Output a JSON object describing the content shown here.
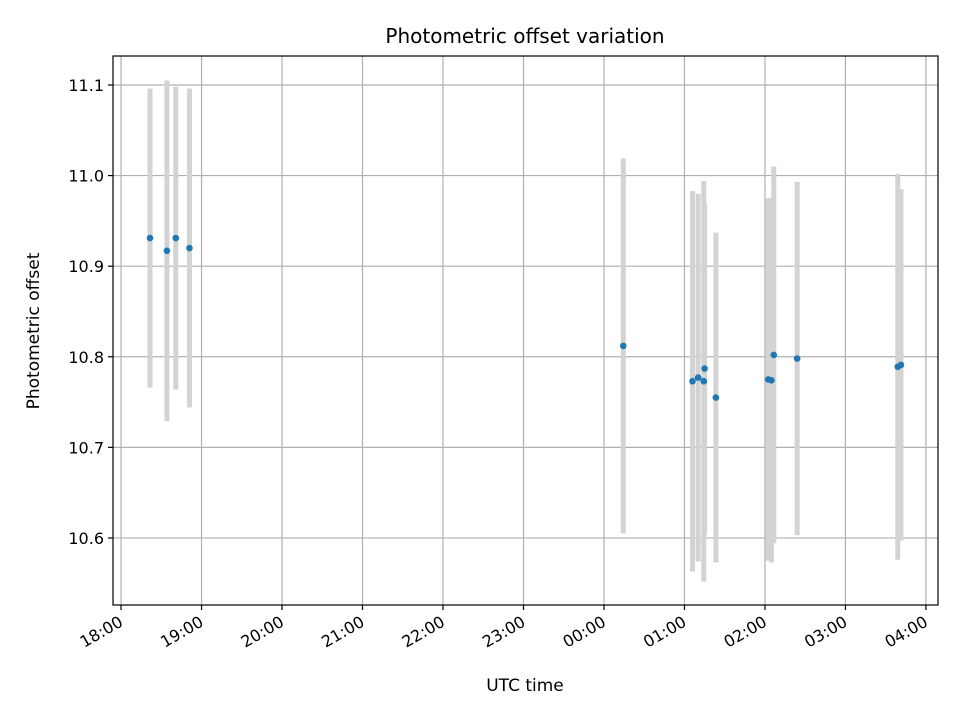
{
  "chart_data": {
    "type": "scatter",
    "title": "Photometric offset variation",
    "xlabel": "UTC time",
    "ylabel": "Photometric offset",
    "x_unit": "UTC time of day (hours, times after midnight continue past 24 into the next day)",
    "xlim": [
      17.9,
      28.15
    ],
    "ylim": [
      10.526,
      11.132
    ],
    "x_ticks": [
      {
        "value": 18,
        "label": "18:00"
      },
      {
        "value": 19,
        "label": "19:00"
      },
      {
        "value": 20,
        "label": "20:00"
      },
      {
        "value": 21,
        "label": "21:00"
      },
      {
        "value": 22,
        "label": "22:00"
      },
      {
        "value": 23,
        "label": "23:00"
      },
      {
        "value": 24,
        "label": "00:00"
      },
      {
        "value": 25,
        "label": "01:00"
      },
      {
        "value": 26,
        "label": "02:00"
      },
      {
        "value": 27,
        "label": "03:00"
      },
      {
        "value": 28,
        "label": "04:00"
      }
    ],
    "y_ticks": [
      {
        "value": 10.6,
        "label": "10.6"
      },
      {
        "value": 10.7,
        "label": "10.7"
      },
      {
        "value": 10.8,
        "label": "10.8"
      },
      {
        "value": 10.9,
        "label": "10.9"
      },
      {
        "value": 11.0,
        "label": "11.0"
      },
      {
        "value": 11.1,
        "label": "11.1"
      }
    ],
    "grid": true,
    "colors": {
      "points": "#1f77b4",
      "error_bars": "#d3d3d3",
      "grid": "#b0b0b0"
    },
    "points": [
      {
        "x": 18.36,
        "y": 10.931,
        "ylow": 10.766,
        "yhigh": 11.096
      },
      {
        "x": 18.57,
        "y": 10.917,
        "ylow": 10.729,
        "yhigh": 11.105
      },
      {
        "x": 18.68,
        "y": 10.931,
        "ylow": 10.764,
        "yhigh": 11.098
      },
      {
        "x": 18.85,
        "y": 10.92,
        "ylow": 10.744,
        "yhigh": 11.096
      },
      {
        "x": 24.24,
        "y": 10.812,
        "ylow": 10.605,
        "yhigh": 11.019
      },
      {
        "x": 25.1,
        "y": 10.773,
        "ylow": 10.563,
        "yhigh": 10.983
      },
      {
        "x": 25.17,
        "y": 10.777,
        "ylow": 10.574,
        "yhigh": 10.98
      },
      {
        "x": 25.24,
        "y": 10.773,
        "ylow": 10.552,
        "yhigh": 10.994
      },
      {
        "x": 25.25,
        "y": 10.787,
        "ylow": 10.604,
        "yhigh": 10.97
      },
      {
        "x": 25.39,
        "y": 10.755,
        "ylow": 10.573,
        "yhigh": 10.937
      },
      {
        "x": 26.04,
        "y": 10.775,
        "ylow": 10.575,
        "yhigh": 10.975
      },
      {
        "x": 26.08,
        "y": 10.774,
        "ylow": 10.573,
        "yhigh": 10.975
      },
      {
        "x": 26.11,
        "y": 10.802,
        "ylow": 10.594,
        "yhigh": 11.01
      },
      {
        "x": 26.4,
        "y": 10.798,
        "ylow": 10.603,
        "yhigh": 10.993
      },
      {
        "x": 27.65,
        "y": 10.789,
        "ylow": 10.576,
        "yhigh": 11.002
      },
      {
        "x": 27.69,
        "y": 10.791,
        "ylow": 10.597,
        "yhigh": 10.985
      }
    ]
  }
}
